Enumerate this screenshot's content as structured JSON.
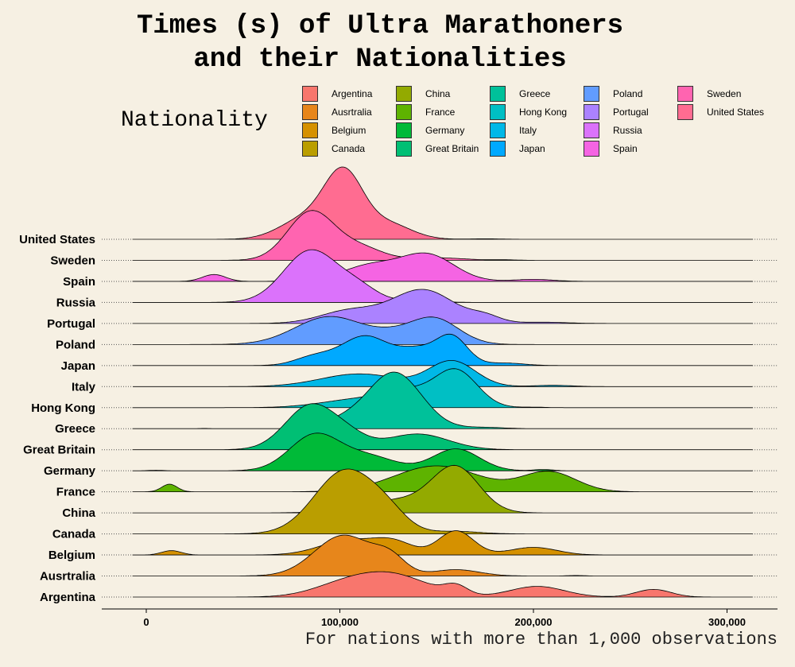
{
  "title": "Times (s) of Ultra Marathoners\nand their Nationalities",
  "legend_title": "Nationality",
  "caption": "For nations with more than 1,000 observations",
  "chart_data": {
    "type": "ridgeline",
    "title": "Times (s) of Ultra Marathoners and their Nationalities",
    "xlabel": "",
    "ylabel": "",
    "xlim": [
      -23000,
      327000
    ],
    "x_ticks": [
      0,
      100000,
      200000,
      300000
    ],
    "x_tick_labels": [
      "0",
      "100,000",
      "200,000",
      "300,000"
    ],
    "legend_position": "top",
    "grid": false,
    "categories": [
      "Argentina",
      "Ausrtralia",
      "Belgium",
      "Canada",
      "China",
      "France",
      "Germany",
      "Great Britain",
      "Greece",
      "Hong Kong",
      "Italy",
      "Japan",
      "Poland",
      "Portugal",
      "Russia",
      "Spain",
      "Sweden",
      "United States"
    ],
    "series": [
      {
        "name": "Argentina",
        "color": "#F8766D",
        "range": [
          -7000,
          313000
        ],
        "peaks": [
          [
            126000,
            19000,
            0.88
          ],
          [
            100000,
            16000,
            0.35
          ],
          [
            160000,
            6000,
            0.35
          ],
          [
            202000,
            14000,
            0.42
          ],
          [
            262000,
            9000,
            0.3
          ]
        ]
      },
      {
        "name": "Ausrtralia",
        "color": "#E7861B",
        "range": [
          -7000,
          313000
        ],
        "peaks": [
          [
            102000,
            15000,
            1.6
          ],
          [
            126000,
            8000,
            0.6
          ],
          [
            160000,
            12000,
            0.25
          ],
          [
            222000,
            4000,
            0.02
          ]
        ]
      },
      {
        "name": "Belgium",
        "color": "#D59100",
        "range": [
          -7000,
          313000
        ],
        "peaks": [
          [
            13000,
            5000,
            0.17
          ],
          [
            105000,
            15000,
            0.58
          ],
          [
            128000,
            10000,
            0.45
          ],
          [
            160000,
            9000,
            0.95
          ],
          [
            200000,
            12000,
            0.3
          ]
        ]
      },
      {
        "name": "Canada",
        "color": "#BA9E00",
        "range": [
          -7000,
          313000
        ],
        "peaks": [
          [
            103000,
            16000,
            2.5
          ],
          [
            125000,
            10000,
            0.5
          ],
          [
            160000,
            12000,
            0.1
          ]
        ]
      },
      {
        "name": "China",
        "color": "#93AA00",
        "range": [
          -7000,
          313000
        ],
        "peaks": [
          [
            130000,
            20000,
            0.5
          ],
          [
            160000,
            12000,
            1.7
          ]
        ]
      },
      {
        "name": "France",
        "color": "#5EB300",
        "range": [
          -7000,
          313000
        ],
        "peaks": [
          [
            12000,
            4000,
            0.3
          ],
          [
            150000,
            22000,
            1.02
          ],
          [
            208000,
            14000,
            0.78
          ]
        ]
      },
      {
        "name": "Germany",
        "color": "#00BA38",
        "range": [
          -7000,
          313000
        ],
        "peaks": [
          [
            5000,
            4000,
            0.02
          ],
          [
            87000,
            13000,
            1.4
          ],
          [
            115000,
            14000,
            0.55
          ],
          [
            160000,
            12000,
            0.86
          ],
          [
            205000,
            5000,
            0.05
          ]
        ]
      },
      {
        "name": "Great Britain",
        "color": "#00BF74",
        "range": [
          -7000,
          313000
        ],
        "peaks": [
          [
            85000,
            13000,
            1.75
          ],
          [
            105000,
            10000,
            0.4
          ],
          [
            140000,
            16000,
            0.62
          ]
        ]
      },
      {
        "name": "Greece",
        "color": "#00C19A",
        "range": [
          -7000,
          313000
        ],
        "peaks": [
          [
            30000,
            3000,
            0.01
          ],
          [
            128000,
            14000,
            2.22
          ],
          [
            100000,
            10000,
            0.25
          ],
          [
            175000,
            10000,
            0.05
          ]
        ]
      },
      {
        "name": "Hong Kong",
        "color": "#00BFC4",
        "range": [
          -7000,
          313000
        ],
        "peaks": [
          [
            112000,
            20000,
            0.35
          ],
          [
            160000,
            11000,
            1.45
          ],
          [
            135000,
            12000,
            0.5
          ],
          [
            200000,
            6000,
            0.02
          ]
        ]
      },
      {
        "name": "Italy",
        "color": "#00B8E7",
        "range": [
          -7000,
          313000
        ],
        "peaks": [
          [
            110000,
            20000,
            0.5
          ],
          [
            158000,
            12000,
            1.0
          ],
          [
            210000,
            10000,
            0.05
          ]
        ]
      },
      {
        "name": "Japan",
        "color": "#00A9FF",
        "range": [
          -7000,
          313000
        ],
        "peaks": [
          [
            87000,
            10000,
            0.35
          ],
          [
            113000,
            12000,
            1.15
          ],
          [
            140000,
            10000,
            0.6
          ],
          [
            158000,
            8000,
            1.1
          ],
          [
            185000,
            10000,
            0.1
          ]
        ]
      },
      {
        "name": "Poland",
        "color": "#619CFF",
        "range": [
          -7000,
          313000
        ],
        "peaks": [
          [
            95000,
            18000,
            1.1
          ],
          [
            148000,
            13000,
            1.05
          ],
          [
            125000,
            10000,
            0.2
          ]
        ]
      },
      {
        "name": "Portugal",
        "color": "#AB82FF",
        "range": [
          -7000,
          313000
        ],
        "peaks": [
          [
            105000,
            15000,
            0.5
          ],
          [
            143000,
            16000,
            1.32
          ],
          [
            175000,
            8000,
            0.25
          ],
          [
            205000,
            12000,
            0.05
          ]
        ]
      },
      {
        "name": "Russia",
        "color": "#DB72FB",
        "range": [
          -7000,
          313000
        ],
        "peaks": [
          [
            85000,
            14000,
            2.05
          ],
          [
            110000,
            10000,
            0.5
          ],
          [
            140000,
            10000,
            0.1
          ]
        ]
      },
      {
        "name": "Spain",
        "color": "#F564E3",
        "range": [
          -7000,
          313000
        ],
        "peaks": [
          [
            35000,
            6000,
            0.27
          ],
          [
            85000,
            8000,
            0.15
          ],
          [
            115000,
            14000,
            0.6
          ],
          [
            145000,
            14000,
            1.05
          ],
          [
            200000,
            10000,
            0.08
          ]
        ]
      },
      {
        "name": "Sweden",
        "color": "#FF64B0",
        "range": [
          -7000,
          313000
        ],
        "peaks": [
          [
            85000,
            12000,
            1.9
          ],
          [
            110000,
            12000,
            0.5
          ],
          [
            150000,
            14000,
            0.1
          ],
          [
            185000,
            6000,
            0.02
          ]
        ]
      },
      {
        "name": "United States",
        "color": "#FF6C91",
        "range": [
          -7000,
          313000
        ],
        "peaks": [
          [
            102000,
            10000,
            2.5
          ],
          [
            82000,
            13000,
            0.8
          ],
          [
            125000,
            12000,
            0.6
          ],
          [
            175000,
            8000,
            0.02
          ]
        ]
      }
    ]
  }
}
